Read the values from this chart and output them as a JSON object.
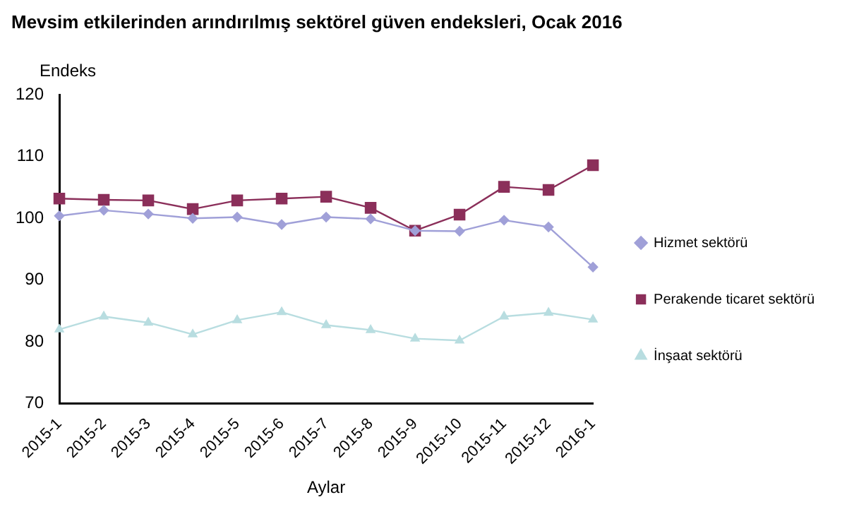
{
  "chart_data": {
    "type": "line",
    "title": "Mevsim etkilerinden arındırılmış sektörel güven endeksleri, Ocak 2016",
    "ylabel": "Endeks",
    "xlabel": "Aylar",
    "categories": [
      "2015-1",
      "2015-2",
      "2015-3",
      "2015-4",
      "2015-5",
      "2015-6",
      "2015-7",
      "2015-8",
      "2015-9",
      "2015-10",
      "2015-11",
      "2015-12",
      "2016-1"
    ],
    "series": [
      {
        "name": "Hizmet sektörü",
        "color": "#a0a0d8",
        "marker": "diamond",
        "values": [
          100.4,
          101.3,
          100.7,
          100.0,
          100.2,
          99.0,
          100.2,
          99.9,
          98.0,
          97.9,
          99.7,
          98.6,
          92.1
        ]
      },
      {
        "name": "Perakende ticaret sektörü",
        "color": "#8b2f5a",
        "marker": "square",
        "values": [
          103.2,
          103.0,
          102.9,
          101.5,
          102.9,
          103.2,
          103.5,
          101.7,
          98.0,
          100.6,
          105.1,
          104.6,
          108.6
        ]
      },
      {
        "name": "İnşaat sektörü",
        "color": "#b8dde0",
        "marker": "triangle",
        "values": [
          82.0,
          84.1,
          83.1,
          81.2,
          83.5,
          84.8,
          82.7,
          81.9,
          80.5,
          80.2,
          84.1,
          84.7,
          83.6
        ]
      }
    ],
    "ylim": [
      70,
      120
    ],
    "yticks": [
      70,
      80,
      90,
      100,
      110,
      120
    ],
    "grid": false,
    "legend": "right"
  }
}
